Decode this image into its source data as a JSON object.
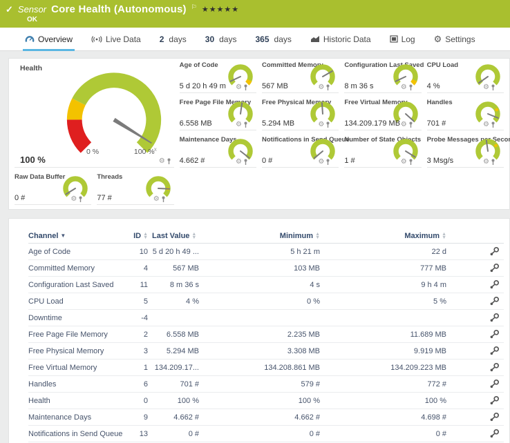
{
  "colors": {
    "header_bg": "#a9bf2f",
    "accent_blue": "#5ab6e2",
    "gauge_green": "#afc936",
    "gauge_yellow": "#f3c200",
    "gauge_red": "#df1f1f",
    "needle": "#7b7b7b",
    "table_header_text": "#32496b",
    "row_text": "#46536b"
  },
  "header": {
    "status_check_icon": "✓",
    "type_label": "Sensor",
    "title": "Core Health (Autonomous)",
    "flag_icon": "⚐",
    "stars": "★★★★★",
    "status": "OK"
  },
  "tabs": {
    "overview": "Overview",
    "live": "Live Data",
    "d2_num": "2",
    "d2_unit": "days",
    "d30_num": "30",
    "d30_unit": "days",
    "d365_num": "365",
    "d365_unit": "days",
    "historic": "Historic Data",
    "log": "Log",
    "settings": "Settings",
    "settings_gear": "⚙"
  },
  "health_gauge": {
    "title": "Health",
    "value": "100 %",
    "scale_min": "0 %",
    "scale_max": "100 %",
    "needle_angle": 122,
    "tip_label": "x"
  },
  "gauge_icons": {
    "gear": "⚙",
    "pin": "pin-icon"
  },
  "mini_gauges": [
    {
      "label": "Age of Code",
      "value": "5 d 20 h 49 m",
      "needle_angle": -115,
      "warn_end": true,
      "marker_angle": null
    },
    {
      "label": "Committed Memory",
      "value": "567 MB",
      "needle_angle": 60,
      "warn_end": false,
      "marker_angle": null
    },
    {
      "label": "Configuration Last Saved",
      "value": "8 m 36 s",
      "needle_angle": -115,
      "warn_end": true,
      "marker_angle": null
    },
    {
      "label": "CPU Load",
      "value": "4 %",
      "needle_angle": -125,
      "warn_end": false,
      "marker_angle": null
    },
    {
      "label": "Free Page File Memory",
      "value": "6.558 MB",
      "needle_angle": 8,
      "warn_end": false,
      "marker_angle": null
    },
    {
      "label": "Free Physical Memory",
      "value": "5.294 MB",
      "needle_angle": -4,
      "warn_end": false,
      "marker_angle": null
    },
    {
      "label": "Free Virtual Memory",
      "value": "134.209.179 MB",
      "needle_angle": 132,
      "warn_end": false,
      "marker_angle": null
    },
    {
      "label": "Handles",
      "value": "701 #",
      "needle_angle": 112,
      "warn_end": false,
      "marker_angle": 65
    },
    {
      "label": "Maintenance Days",
      "value": "4.662 #",
      "needle_angle": 128,
      "warn_end": false,
      "marker_angle": null
    },
    {
      "label": "Notifications in Send Queue",
      "value": "0 #",
      "needle_angle": -130,
      "warn_end": false,
      "marker_angle": null
    },
    {
      "label": "Number of State Objects",
      "value": "1 #",
      "needle_angle": 122,
      "warn_end": false,
      "marker_angle": null
    },
    {
      "label": "Probe Messages per Second",
      "value": "3 Msg/s",
      "needle_angle": -8,
      "warn_end": false,
      "marker_angle": 55
    },
    {
      "label": "Raw Data Buffer",
      "value": "0 #",
      "needle_angle": -122,
      "warn_end": false,
      "marker_angle": null
    },
    {
      "label": "Threads",
      "value": "77 #",
      "needle_angle": 93,
      "warn_end": false,
      "marker_angle": 93
    }
  ],
  "table": {
    "headers": {
      "channel": "Channel",
      "id": "ID",
      "last": "Last Value",
      "min": "Minimum",
      "max": "Maximum"
    },
    "rows": [
      {
        "channel": "Age of Code",
        "id": "10",
        "last": "5 d 20 h 49 ...",
        "min": "5 h 21 m",
        "max": "22 d"
      },
      {
        "channel": "Committed Memory",
        "id": "4",
        "last": "567 MB",
        "min": "103 MB",
        "max": "777 MB"
      },
      {
        "channel": "Configuration Last Saved",
        "id": "11",
        "last": "8 m 36 s",
        "min": "4 s",
        "max": "9 h 4 m"
      },
      {
        "channel": "CPU Load",
        "id": "5",
        "last": "4 %",
        "min": "0 %",
        "max": "5 %"
      },
      {
        "channel": "Downtime",
        "id": "-4",
        "last": "",
        "min": "",
        "max": ""
      },
      {
        "channel": "Free Page File Memory",
        "id": "2",
        "last": "6.558 MB",
        "min": "2.235 MB",
        "max": "11.689 MB"
      },
      {
        "channel": "Free Physical Memory",
        "id": "3",
        "last": "5.294 MB",
        "min": "3.308 MB",
        "max": "9.919 MB"
      },
      {
        "channel": "Free Virtual Memory",
        "id": "1",
        "last": "134.209.17...",
        "min": "134.208.861 MB",
        "max": "134.209.223 MB"
      },
      {
        "channel": "Handles",
        "id": "6",
        "last": "701 #",
        "min": "579 #",
        "max": "772 #"
      },
      {
        "channel": "Health",
        "id": "0",
        "last": "100 %",
        "min": "100 %",
        "max": "100 %"
      },
      {
        "channel": "Maintenance Days",
        "id": "9",
        "last": "4.662 #",
        "min": "4.662 #",
        "max": "4.698 #"
      },
      {
        "channel": "Notifications in Send Queue",
        "id": "13",
        "last": "0 #",
        "min": "0 #",
        "max": "0 #"
      }
    ]
  }
}
